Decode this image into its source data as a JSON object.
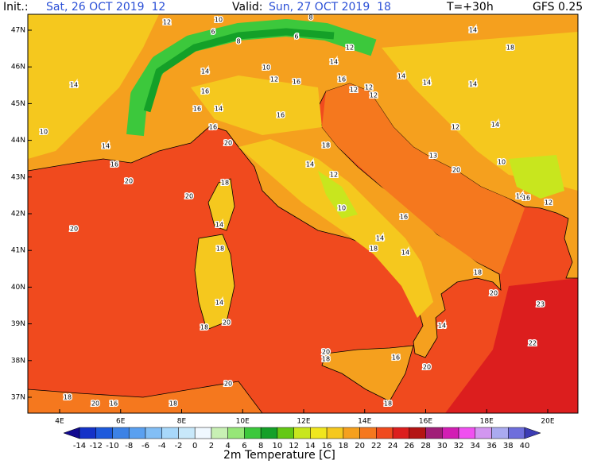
{
  "header": {
    "init_label": "Init.:",
    "init": "Sat, 26 OCT 2019  12",
    "valid_label": "Valid:",
    "valid": "Sun, 27 OCT 2019  18",
    "lead": "T=+30h",
    "model": "GFS 0.25"
  },
  "map": {
    "lat_labels": [
      "47N",
      "46N",
      "45N",
      "44N",
      "43N",
      "42N",
      "41N",
      "40N",
      "39N",
      "38N",
      "37N"
    ],
    "lon_labels": [
      "4E",
      "6E",
      "8E",
      "10E",
      "12E",
      "14E",
      "16E",
      "18E",
      "20E"
    ],
    "contour_labels": [
      "12",
      "10",
      "6",
      "8",
      "6",
      "8",
      "14",
      "18",
      "14",
      "12",
      "10",
      "12",
      "16",
      "14",
      "14",
      "10",
      "14",
      "16",
      "14",
      "16",
      "16",
      "20",
      "16",
      "18",
      "14",
      "12",
      "10",
      "14",
      "14",
      "14",
      "12",
      "14",
      "10",
      "13",
      "20",
      "12",
      "16",
      "20",
      "20",
      "18",
      "14",
      "20",
      "16",
      "14",
      "14",
      "18",
      "18",
      "18",
      "20",
      "23",
      "14",
      "18",
      "20",
      "14",
      "20",
      "18",
      "16",
      "20",
      "22",
      "20",
      "18",
      "20",
      "16",
      "18",
      "18",
      "14",
      "16",
      "12",
      "16",
      "12",
      "12"
    ]
  },
  "colorbar": {
    "title": "2m Temperature [C]",
    "ticks": [
      -14,
      -12,
      -10,
      -8,
      -6,
      -4,
      -2,
      0,
      2,
      4,
      6,
      8,
      10,
      12,
      14,
      16,
      18,
      20,
      22,
      24,
      26,
      28,
      30,
      32,
      34,
      36,
      38,
      40
    ],
    "colors": [
      "#120a8f",
      "#1432c8",
      "#1e5adc",
      "#3c82e6",
      "#5aa0f0",
      "#82bef5",
      "#a8d8fa",
      "#c8e8fa",
      "#f0f8ff",
      "#c8f0b4",
      "#96e678",
      "#3cc83c",
      "#14a028",
      "#64c814",
      "#c8e61e",
      "#f0e61e",
      "#f5c81e",
      "#f5a01e",
      "#f5781e",
      "#f04a1e",
      "#dc1e1e",
      "#b41414",
      "#a01e78",
      "#d21eb4",
      "#f050f0",
      "#d296f0",
      "#aaaaf0",
      "#6e6edc",
      "#3c3cb4"
    ]
  }
}
